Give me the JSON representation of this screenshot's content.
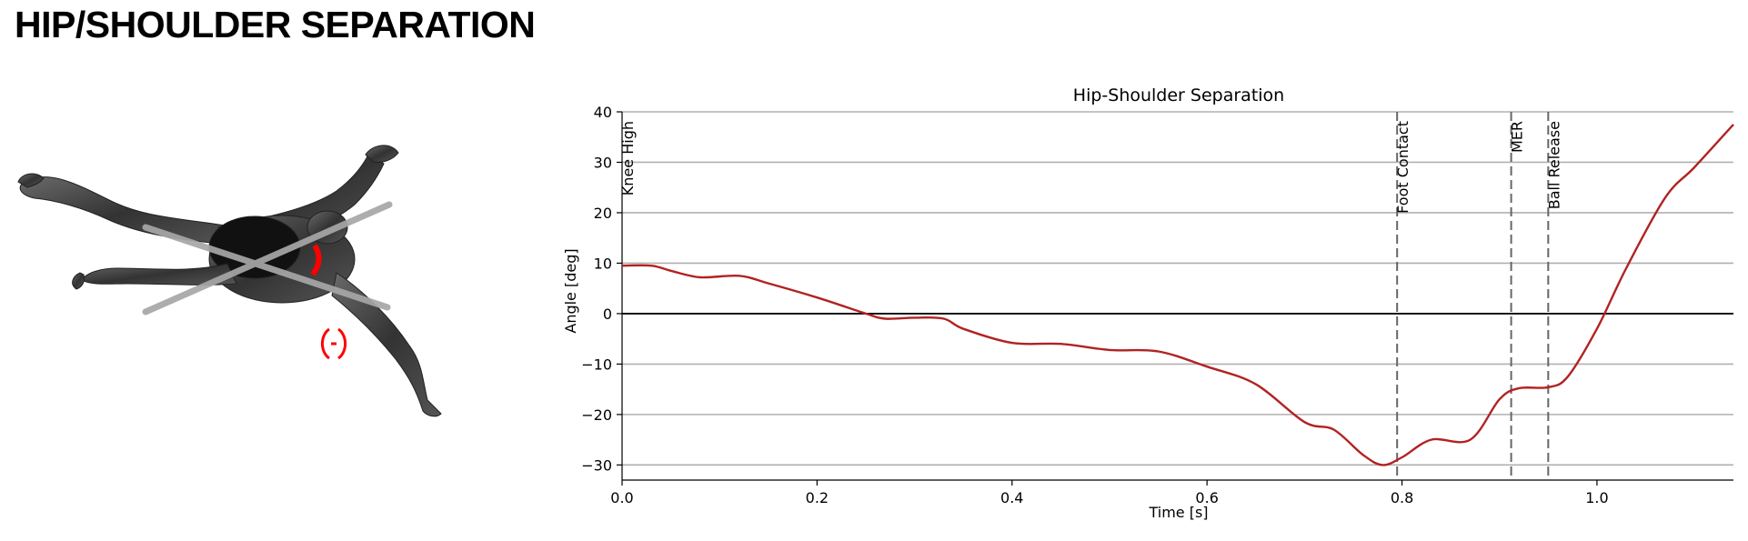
{
  "page": {
    "heading": "HIP/SHOULDER SEPARATION"
  },
  "figure": {
    "subject": "pitcher-body-model-top-view",
    "line_color": "#a7a7a7",
    "arc_color": "#ff0000",
    "body_color": "#3a3a3a"
  },
  "chart_data": {
    "type": "line",
    "title": "Hip-Shoulder Separation",
    "xlabel": "Time [s]",
    "ylabel": "Angle [deg]",
    "xlim": [
      0,
      1.14
    ],
    "ylim": [
      -33,
      40
    ],
    "x_ticks": [
      0.0,
      0.2,
      0.4,
      0.6,
      0.8,
      1.0
    ],
    "x_tick_labels": [
      "0.0",
      "0.2",
      "0.4",
      "0.6",
      "0.8",
      "1.0"
    ],
    "y_ticks": [
      -30,
      -20,
      -10,
      0,
      10,
      20,
      30,
      40
    ],
    "y_tick_labels": [
      "−30",
      "−20",
      "−10",
      "0",
      "10",
      "20",
      "30",
      "40"
    ],
    "grid": "horizontal",
    "zero_line": true,
    "line_color": "#b22222",
    "events": [
      {
        "label": "Knee High",
        "x": 0.0
      },
      {
        "label": "Foot Contact",
        "x": 0.795
      },
      {
        "label": "MER",
        "x": 0.912
      },
      {
        "label": "Ball Release",
        "x": 0.95
      }
    ],
    "series": [
      {
        "x": [
          0.0,
          0.03,
          0.05,
          0.08,
          0.12,
          0.15,
          0.2,
          0.25,
          0.27,
          0.3,
          0.33,
          0.35,
          0.4,
          0.45,
          0.5,
          0.55,
          0.6,
          0.65,
          0.7,
          0.73,
          0.76,
          0.78,
          0.8,
          0.83,
          0.87,
          0.9,
          0.92,
          0.95,
          0.97,
          1.0,
          1.03,
          1.07,
          1.1,
          1.14
        ],
        "y": [
          9.5,
          9.5,
          8.5,
          7.2,
          7.5,
          6.0,
          3.2,
          0.0,
          -1.0,
          -0.8,
          -1.0,
          -3.0,
          -5.8,
          -6.0,
          -7.2,
          -7.5,
          -10.5,
          -14.0,
          -21.5,
          -23.0,
          -28.0,
          -30.0,
          -28.5,
          -25.0,
          -25.0,
          -17.0,
          -14.8,
          -14.6,
          -12.5,
          -3.0,
          9.0,
          23.0,
          29.0,
          37.5
        ]
      }
    ]
  }
}
